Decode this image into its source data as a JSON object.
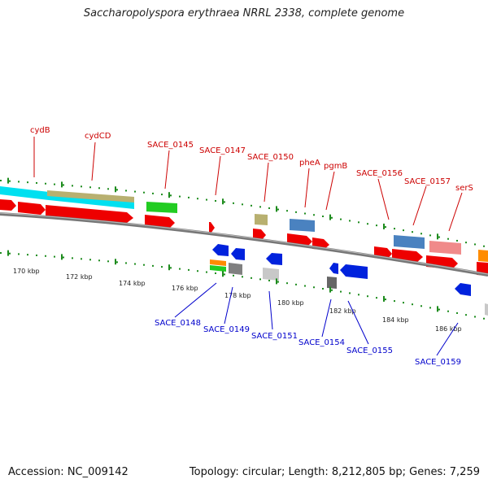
{
  "header": {
    "title": "Saccharopolyspora erythraea NRRL 2338, complete genome"
  },
  "footer": {
    "accession": "Accession: NC_009142",
    "topology": "Topology: circular; Length: 8,212,805 bp; Genes: 7,259"
  },
  "colors": {
    "forward_label": "#cc0000",
    "reverse_label": "#0000cc",
    "tick": "#1e8c1e",
    "backbone": "#8c8c8c"
  },
  "scale_labels": [
    "170 kbp",
    "172 kbp",
    "174 kbp",
    "176 kbp",
    "178 kbp",
    "180 kbp",
    "182 kbp",
    "184 kbp",
    "186 kbp"
  ],
  "forward_genes": [
    "cydB",
    "cydCD",
    "SACE_0145",
    "SACE_0147",
    "SACE_0150",
    "pheA",
    "pgmB",
    "SACE_0156",
    "SACE_0157",
    "serS"
  ],
  "reverse_genes": [
    "SACE_0148",
    "SACE_0149",
    "SACE_0151",
    "SACE_0154",
    "SACE_0155",
    "SACE_0159"
  ]
}
